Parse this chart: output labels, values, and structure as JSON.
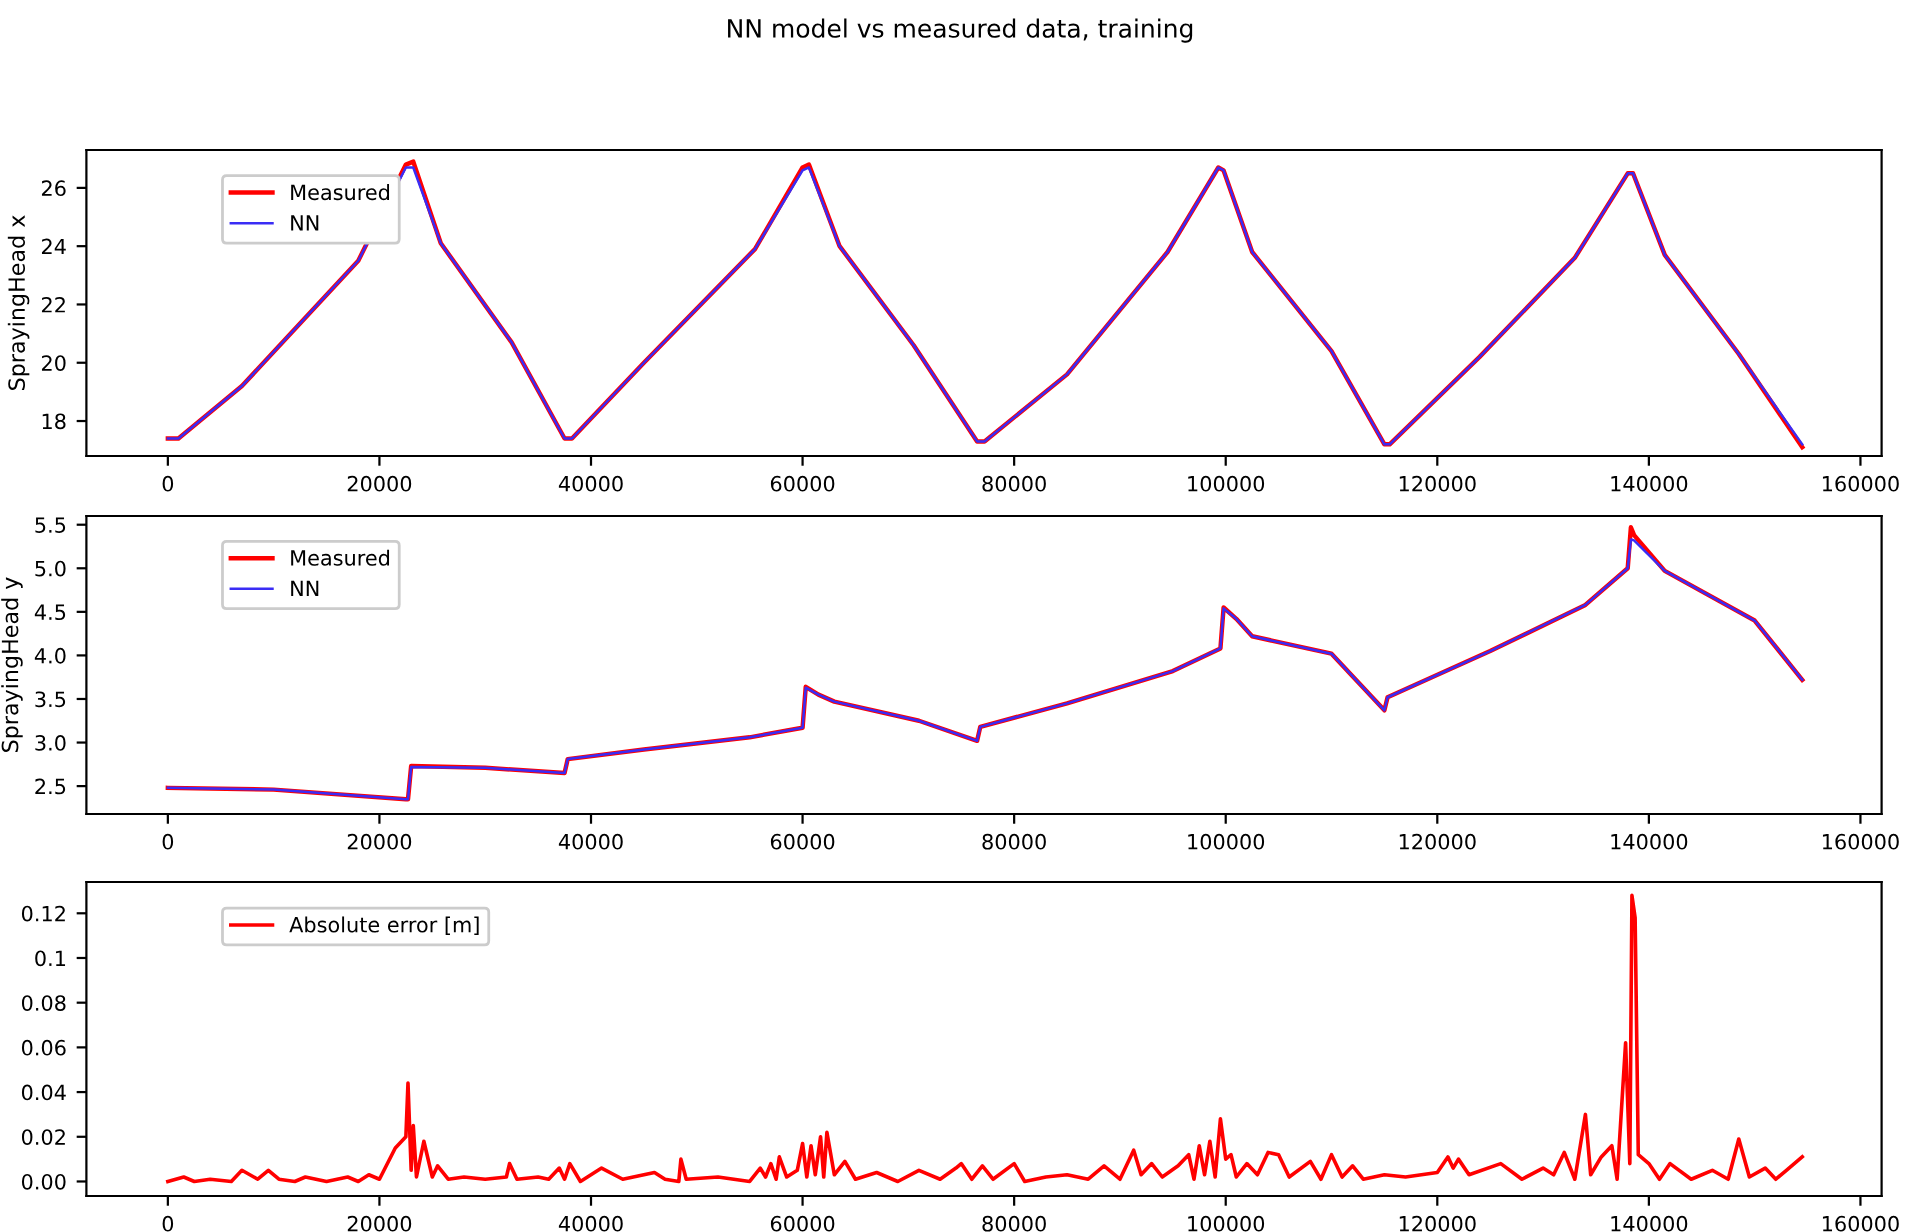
{
  "chart_data": [
    {
      "type": "line",
      "title": "NN model vs measured data, training",
      "ylabel": "SprayingHead x",
      "legend": "top left",
      "grid": false,
      "xlim": [
        -7700,
        162000
      ],
      "xticks": [
        0,
        20000,
        40000,
        60000,
        80000,
        100000,
        120000,
        140000,
        160000
      ],
      "ylim": [
        16.8,
        27.3
      ],
      "yticks": [
        18,
        20,
        22,
        24,
        26
      ],
      "series": [
        {
          "name": "Measured",
          "color": "#ff0000",
          "x": [
            0,
            1000,
            7000,
            18000,
            22500,
            23200,
            25800,
            32500,
            37500,
            38200,
            45000,
            55500,
            60000,
            60600,
            63500,
            70500,
            76500,
            77200,
            85000,
            94500,
            99300,
            99800,
            102500,
            110000,
            115000,
            115500,
            124000,
            133000,
            138000,
            138500,
            141500,
            148500,
            154500
          ],
          "values": [
            17.4,
            17.4,
            19.2,
            23.5,
            26.8,
            26.9,
            24.1,
            20.7,
            17.4,
            17.4,
            20.0,
            23.9,
            26.7,
            26.8,
            24.0,
            20.6,
            17.3,
            17.3,
            19.6,
            23.8,
            26.7,
            26.6,
            23.8,
            20.4,
            17.2,
            17.2,
            20.2,
            23.6,
            26.5,
            26.5,
            23.7,
            20.3,
            17.1
          ]
        },
        {
          "name": "NN",
          "color": "#3a2cf5",
          "x": [
            0,
            1000,
            7000,
            18000,
            22500,
            23200,
            25800,
            32500,
            37500,
            38200,
            45000,
            55500,
            60000,
            60600,
            63500,
            70500,
            76500,
            77200,
            85000,
            94500,
            99300,
            99800,
            102500,
            110000,
            115000,
            115500,
            124000,
            133000,
            138000,
            138500,
            141500,
            148500,
            154500
          ],
          "values": [
            17.4,
            17.4,
            19.2,
            23.5,
            26.7,
            26.7,
            24.1,
            20.7,
            17.4,
            17.4,
            20.0,
            23.9,
            26.6,
            26.7,
            24.0,
            20.6,
            17.3,
            17.3,
            19.6,
            23.8,
            26.7,
            26.6,
            23.8,
            20.4,
            17.2,
            17.2,
            20.2,
            23.6,
            26.5,
            26.5,
            23.7,
            20.3,
            17.2
          ]
        }
      ]
    },
    {
      "type": "line",
      "ylabel": "SprayingHead y",
      "legend": "top left",
      "grid": false,
      "xlim": [
        -7700,
        162000
      ],
      "xticks": [
        0,
        20000,
        40000,
        60000,
        80000,
        100000,
        120000,
        140000,
        160000
      ],
      "ylim": [
        2.18,
        5.6
      ],
      "yticks": [
        2.5,
        {
          "value": 3,
          "label": "3.0"
        },
        3.5,
        {
          "value": 4,
          "label": "4.0"
        },
        4.5,
        {
          "value": 5,
          "label": "5.0"
        },
        5.5
      ],
      "series": [
        {
          "name": "Measured",
          "color": "#ff0000",
          "x": [
            0,
            10000,
            22500,
            22700,
            23000,
            30000,
            37500,
            37800,
            45000,
            55000,
            60000,
            60300,
            61500,
            63000,
            71000,
            76500,
            76800,
            85000,
            95000,
            99500,
            99800,
            101000,
            102500,
            110000,
            115000,
            115300,
            125000,
            134000,
            138000,
            138300,
            138600,
            141500,
            150000,
            154500
          ],
          "values": [
            2.48,
            2.46,
            2.35,
            2.35,
            2.73,
            2.71,
            2.65,
            2.81,
            2.92,
            3.06,
            3.17,
            3.64,
            3.55,
            3.47,
            3.25,
            3.02,
            3.18,
            3.45,
            3.82,
            4.08,
            4.55,
            4.42,
            4.22,
            4.02,
            3.37,
            3.52,
            4.05,
            4.58,
            5.0,
            5.47,
            5.38,
            4.97,
            4.4,
            3.72
          ]
        },
        {
          "name": "NN",
          "color": "#3a2cf5",
          "x": [
            0,
            10000,
            22500,
            22700,
            23000,
            30000,
            37500,
            37800,
            45000,
            55000,
            60000,
            60300,
            61500,
            63000,
            71000,
            76500,
            76800,
            85000,
            95000,
            99500,
            99800,
            101000,
            102500,
            110000,
            115000,
            115300,
            125000,
            134000,
            138000,
            138300,
            138600,
            141500,
            150000,
            154500
          ],
          "values": [
            2.48,
            2.46,
            2.35,
            2.35,
            2.72,
            2.71,
            2.65,
            2.81,
            2.92,
            3.06,
            3.17,
            3.63,
            3.55,
            3.47,
            3.25,
            3.02,
            3.18,
            3.45,
            3.82,
            4.08,
            4.54,
            4.42,
            4.22,
            4.02,
            3.37,
            3.52,
            4.05,
            4.58,
            5.0,
            5.33,
            5.32,
            4.97,
            4.4,
            3.72
          ]
        }
      ]
    },
    {
      "type": "line",
      "legend": "top left",
      "grid": false,
      "xlim": [
        -7700,
        162000
      ],
      "xticks": [
        0,
        20000,
        40000,
        60000,
        80000,
        100000,
        120000,
        140000,
        160000
      ],
      "ylim": [
        -0.0065,
        0.134
      ],
      "yticks": [
        {
          "value": 0,
          "label": "0.00"
        },
        0.02,
        0.04,
        0.06,
        0.08,
        0.1,
        0.12
      ],
      "series": [
        {
          "name": "Absolute error [m]",
          "color": "#ff0000",
          "x": [
            0,
            1500,
            2500,
            4000,
            6000,
            7000,
            8500,
            9500,
            10500,
            12000,
            13000,
            15000,
            17000,
            18000,
            19000,
            20000,
            21500,
            22500,
            22700,
            23000,
            23200,
            23500,
            24200,
            25000,
            25500,
            26500,
            28000,
            30000,
            32000,
            32300,
            33000,
            35000,
            36000,
            37000,
            37500,
            38000,
            39000,
            41000,
            43000,
            46000,
            47000,
            48300,
            48500,
            49000,
            52000,
            55000,
            56000,
            56500,
            57000,
            57500,
            57800,
            58500,
            59500,
            60000,
            60400,
            60800,
            61200,
            61700,
            62000,
            62300,
            63000,
            64000,
            65000,
            67000,
            69000,
            71000,
            73000,
            74500,
            75000,
            76000,
            77000,
            78000,
            80000,
            81000,
            83000,
            85000,
            87000,
            88500,
            90000,
            91300,
            92000,
            93000,
            94000,
            95500,
            96500,
            97000,
            97500,
            98000,
            98500,
            99000,
            99500,
            100000,
            100500,
            101000,
            102000,
            103000,
            104000,
            105000,
            106000,
            108000,
            109000,
            110000,
            111000,
            112000,
            113000,
            115000,
            117000,
            120000,
            121000,
            121500,
            122000,
            123000,
            126000,
            128000,
            130000,
            131000,
            132000,
            133000,
            134000,
            134500,
            135500,
            136500,
            137000,
            137800,
            138200,
            138400,
            138700,
            139000,
            140000,
            141000,
            142000,
            144000,
            146000,
            147500,
            148500,
            149500,
            151000,
            152000,
            153000,
            154500
          ],
          "values": [
            0.0,
            0.002,
            0.0,
            0.001,
            0.0,
            0.005,
            0.001,
            0.005,
            0.001,
            0.0,
            0.002,
            0.0,
            0.002,
            0.0,
            0.003,
            0.001,
            0.015,
            0.02,
            0.044,
            0.005,
            0.025,
            0.002,
            0.018,
            0.002,
            0.007,
            0.001,
            0.002,
            0.001,
            0.002,
            0.008,
            0.001,
            0.002,
            0.001,
            0.006,
            0.001,
            0.008,
            0.0,
            0.006,
            0.001,
            0.004,
            0.001,
            0.0,
            0.01,
            0.001,
            0.002,
            0.0,
            0.006,
            0.002,
            0.008,
            0.001,
            0.011,
            0.002,
            0.005,
            0.017,
            0.002,
            0.016,
            0.003,
            0.02,
            0.002,
            0.022,
            0.003,
            0.009,
            0.001,
            0.004,
            0.0,
            0.005,
            0.001,
            0.006,
            0.008,
            0.001,
            0.007,
            0.001,
            0.008,
            0.0,
            0.002,
            0.003,
            0.001,
            0.007,
            0.001,
            0.014,
            0.003,
            0.008,
            0.002,
            0.007,
            0.012,
            0.001,
            0.016,
            0.003,
            0.018,
            0.002,
            0.028,
            0.01,
            0.012,
            0.002,
            0.008,
            0.003,
            0.013,
            0.012,
            0.002,
            0.009,
            0.001,
            0.012,
            0.002,
            0.007,
            0.001,
            0.003,
            0.002,
            0.004,
            0.011,
            0.006,
            0.01,
            0.003,
            0.008,
            0.001,
            0.006,
            0.003,
            0.013,
            0.001,
            0.03,
            0.003,
            0.011,
            0.016,
            0.001,
            0.062,
            0.008,
            0.128,
            0.118,
            0.012,
            0.008,
            0.001,
            0.008,
            0.001,
            0.005,
            0.001,
            0.019,
            0.002,
            0.006,
            0.001,
            0.005,
            0.011
          ]
        }
      ]
    }
  ]
}
